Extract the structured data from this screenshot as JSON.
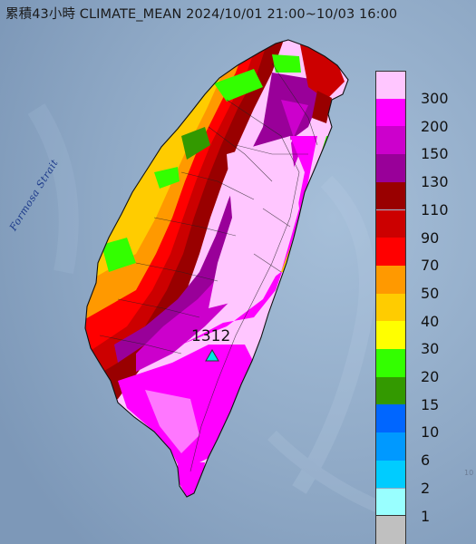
{
  "title": "累積43小時 CLIMATE_MEAN 2024/10/01 21:00~10/03 16:00",
  "labels": {
    "strait": "Formosa Strait",
    "max_value": "1312",
    "edge_mark": "10"
  },
  "legend": [
    {
      "label": "300",
      "color": "#ffc6ff"
    },
    {
      "label": "200",
      "color": "#ff00ff"
    },
    {
      "label": "150",
      "color": "#cc00cc"
    },
    {
      "label": "130",
      "color": "#990099"
    },
    {
      "label": "110",
      "color": "#990000"
    },
    {
      "label": "90",
      "color": "#cc0000"
    },
    {
      "label": "70",
      "color": "#ff0000"
    },
    {
      "label": "50",
      "color": "#ff9900"
    },
    {
      "label": "40",
      "color": "#ffcc00"
    },
    {
      "label": "30",
      "color": "#ffff00"
    },
    {
      "label": "20",
      "color": "#33ff00"
    },
    {
      "label": "15",
      "color": "#339900"
    },
    {
      "label": "10",
      "color": "#0066ff"
    },
    {
      "label": "6",
      "color": "#0099ff"
    },
    {
      "label": "2",
      "color": "#00ccff"
    },
    {
      "label": "1",
      "color": "#99ffff"
    },
    {
      "label": "",
      "color": "#c0c0c0"
    }
  ],
  "colors": {
    "sea": "#8fa9c6",
    "land_base": "#ffc6ff",
    "marker": "#00e5e5"
  },
  "icons": {
    "max_marker": "triangle-icon"
  }
}
